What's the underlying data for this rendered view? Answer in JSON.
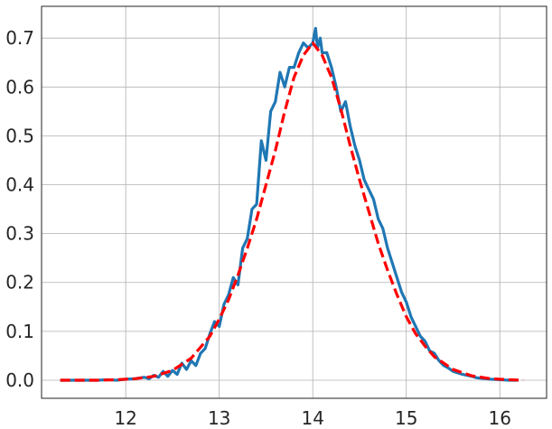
{
  "chart_data": {
    "type": "line",
    "title": "",
    "xlabel": "",
    "ylabel": "",
    "xlim": [
      11.1,
      16.5
    ],
    "ylim": [
      -0.037,
      0.765
    ],
    "xticks": [
      12,
      13,
      14,
      15,
      16
    ],
    "yticks": [
      0.0,
      0.1,
      0.2,
      0.3,
      0.4,
      0.5,
      0.6,
      0.7
    ],
    "xtick_labels": [
      "12",
      "13",
      "14",
      "15",
      "16"
    ],
    "ytick_labels": [
      "0.0",
      "0.1",
      "0.2",
      "0.3",
      "0.4",
      "0.5",
      "0.6",
      "0.7"
    ],
    "grid": true,
    "series": [
      {
        "style": "solid",
        "color": "#1f77b4",
        "x": [
          11.3,
          11.4,
          11.5,
          11.6,
          11.7,
          11.8,
          11.9,
          12.0,
          12.1,
          12.2,
          12.25,
          12.3,
          12.35,
          12.4,
          12.45,
          12.5,
          12.55,
          12.6,
          12.65,
          12.7,
          12.75,
          12.8,
          12.85,
          12.9,
          12.95,
          13.0,
          13.05,
          13.1,
          13.15,
          13.2,
          13.25,
          13.3,
          13.35,
          13.4,
          13.45,
          13.5,
          13.55,
          13.6,
          13.65,
          13.7,
          13.75,
          13.8,
          13.85,
          13.9,
          13.95,
          14.0,
          14.03,
          14.05,
          14.08,
          14.1,
          14.15,
          14.2,
          14.25,
          14.3,
          14.35,
          14.4,
          14.45,
          14.5,
          14.55,
          14.6,
          14.65,
          14.7,
          14.75,
          14.8,
          14.85,
          14.9,
          14.95,
          15.0,
          15.05,
          15.1,
          15.15,
          15.2,
          15.25,
          15.3,
          15.35,
          15.4,
          15.45,
          15.5,
          15.55,
          15.6,
          15.65,
          15.7,
          15.75,
          15.8,
          15.9,
          16.0,
          16.1,
          16.2
        ],
        "y": [
          0.0,
          0.0,
          0.0,
          0.0,
          0.0,
          0.001,
          0.0,
          0.002,
          0.003,
          0.006,
          0.003,
          0.01,
          0.006,
          0.018,
          0.008,
          0.02,
          0.012,
          0.035,
          0.022,
          0.04,
          0.03,
          0.055,
          0.065,
          0.095,
          0.12,
          0.11,
          0.155,
          0.175,
          0.21,
          0.195,
          0.27,
          0.29,
          0.35,
          0.36,
          0.49,
          0.45,
          0.55,
          0.57,
          0.63,
          0.6,
          0.64,
          0.64,
          0.67,
          0.69,
          0.68,
          0.69,
          0.72,
          0.68,
          0.7,
          0.67,
          0.67,
          0.64,
          0.6,
          0.55,
          0.57,
          0.52,
          0.48,
          0.45,
          0.41,
          0.39,
          0.37,
          0.33,
          0.31,
          0.27,
          0.24,
          0.21,
          0.18,
          0.16,
          0.13,
          0.11,
          0.09,
          0.08,
          0.06,
          0.055,
          0.04,
          0.03,
          0.025,
          0.018,
          0.015,
          0.012,
          0.01,
          0.008,
          0.005,
          0.004,
          0.002,
          0.001,
          0.0,
          0.0
        ]
      },
      {
        "style": "dashed",
        "color": "#ff0000",
        "x": [
          11.3,
          11.5,
          11.7,
          11.9,
          12.1,
          12.3,
          12.5,
          12.7,
          12.9,
          13.0,
          13.1,
          13.2,
          13.3,
          13.4,
          13.5,
          13.6,
          13.7,
          13.8,
          13.9,
          14.0,
          14.1,
          14.2,
          14.3,
          14.4,
          14.5,
          14.6,
          14.7,
          14.8,
          14.9,
          15.0,
          15.1,
          15.2,
          15.3,
          15.5,
          15.7,
          15.9,
          16.1,
          16.25
        ],
        "y": [
          0.0,
          0.0,
          0.0,
          0.001,
          0.003,
          0.008,
          0.02,
          0.045,
          0.09,
          0.125,
          0.165,
          0.215,
          0.27,
          0.33,
          0.4,
          0.47,
          0.55,
          0.62,
          0.665,
          0.69,
          0.665,
          0.62,
          0.555,
          0.48,
          0.41,
          0.345,
          0.28,
          0.225,
          0.175,
          0.13,
          0.095,
          0.07,
          0.048,
          0.022,
          0.009,
          0.003,
          0.001,
          0.0
        ]
      }
    ]
  }
}
